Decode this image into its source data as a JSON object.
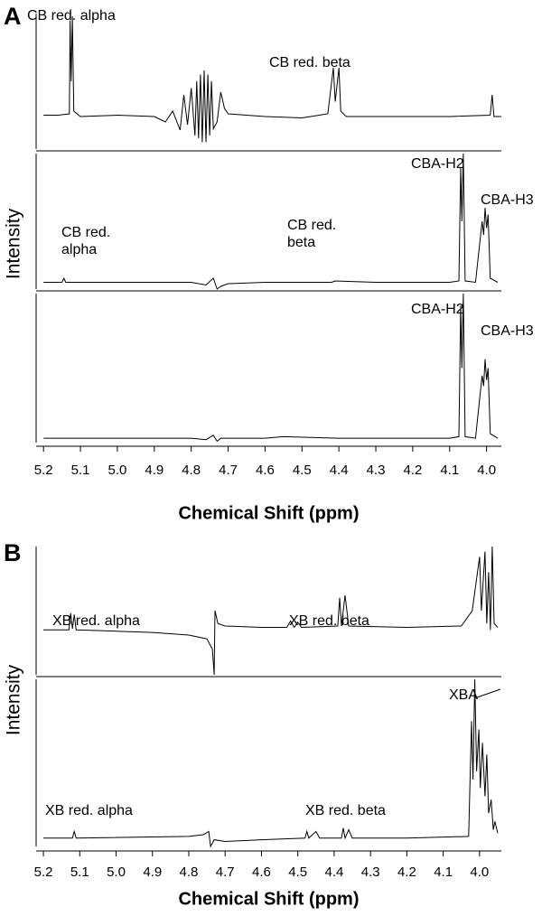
{
  "chart_data": [
    {
      "type": "line",
      "panel_label": "A",
      "y_label": "Intensity",
      "x_label": "Chemical Shift (ppm)",
      "color": "#000000",
      "xlim": [
        5.22,
        3.96
      ],
      "xticks": [
        5.2,
        5.1,
        {
          "value": 5,
          "label": "5.0"
        },
        4.9,
        4.8,
        4.7,
        4.6,
        4.5,
        4.4,
        4.3,
        4.2,
        4.1,
        {
          "value": 4,
          "label": "4.0"
        }
      ],
      "subplots": [
        {
          "ylim": [
            0,
            100
          ],
          "annotations": [
            "CB red. alpha",
            "CB red. beta"
          ],
          "x": [
            5.2,
            5.16,
            5.13,
            5.128,
            5.125,
            5.122,
            5.118,
            5.1,
            5.0,
            4.9,
            4.87,
            4.85,
            4.83,
            4.82,
            4.81,
            4.8,
            4.79,
            4.785,
            4.78,
            4.775,
            4.77,
            4.765,
            4.76,
            4.755,
            4.75,
            4.745,
            4.74,
            4.73,
            4.72,
            4.71,
            4.7,
            4.6,
            4.5,
            4.43,
            4.415,
            4.41,
            4.4,
            4.395,
            4.38,
            4.3,
            4.1,
            3.99,
            3.985,
            3.98,
            3.96
          ],
          "values": [
            25,
            25,
            26,
            95,
            50,
            98,
            28,
            24,
            25,
            24,
            20,
            28,
            14,
            40,
            18,
            45,
            10,
            50,
            8,
            55,
            5,
            58,
            5,
            55,
            10,
            50,
            15,
            20,
            42,
            30,
            26,
            24,
            23,
            26,
            60,
            35,
            60,
            28,
            24,
            24,
            24,
            25,
            40,
            24,
            24
          ]
        },
        {
          "ylim": [
            0,
            100
          ],
          "annotations": [
            "CBA-H2",
            "CBA-H3",
            "CB red. alpha",
            "CB red. beta"
          ],
          "x": [
            5.2,
            5.15,
            5.145,
            5.14,
            5.0,
            4.8,
            4.76,
            4.74,
            4.73,
            4.72,
            4.7,
            4.6,
            4.42,
            4.41,
            4.3,
            4.1,
            4.075,
            4.07,
            4.067,
            4.063,
            4.058,
            4.03,
            4.012,
            4.008,
            4.004,
            4.0,
            3.996,
            3.99,
            3.97
          ],
          "values": [
            5,
            5,
            8,
            5,
            5,
            5,
            3,
            8,
            0,
            2,
            4,
            5,
            5,
            6,
            5,
            5,
            6,
            90,
            50,
            100,
            6,
            5,
            50,
            40,
            60,
            45,
            55,
            8,
            5
          ]
        },
        {
          "ylim": [
            0,
            100
          ],
          "annotations": [
            "CBA-H2",
            "CBA-H3"
          ],
          "x": [
            5.2,
            5.0,
            4.8,
            4.76,
            4.74,
            4.73,
            4.72,
            4.6,
            4.55,
            4.4,
            4.1,
            4.075,
            4.07,
            4.067,
            4.063,
            4.058,
            4.03,
            4.012,
            4.008,
            4.004,
            4.0,
            3.996,
            3.99,
            3.97
          ],
          "values": [
            3,
            3,
            3,
            2,
            5,
            1,
            3,
            3,
            4,
            3,
            3,
            4,
            92,
            50,
            100,
            4,
            3,
            45,
            38,
            56,
            42,
            50,
            6,
            3
          ]
        }
      ]
    },
    {
      "type": "line",
      "panel_label": "B",
      "y_label": "Intensity",
      "x_label": "Chemical Shift (ppm)",
      "color": "#000000",
      "xlim": [
        5.22,
        3.94
      ],
      "xticks": [
        5.2,
        5.1,
        {
          "value": 5,
          "label": "5.0"
        },
        4.9,
        4.8,
        4.7,
        4.6,
        4.5,
        4.4,
        4.3,
        4.2,
        4.1,
        {
          "value": 4,
          "label": "4.0"
        }
      ],
      "subplots": [
        {
          "ylim": [
            0,
            100
          ],
          "annotations": [
            "XB red. alpha",
            "XB red. beta"
          ],
          "x": [
            5.2,
            5.13,
            5.125,
            5.12,
            5.115,
            5.11,
            5.0,
            4.9,
            4.8,
            4.75,
            4.735,
            4.73,
            4.728,
            4.72,
            4.7,
            4.6,
            4.53,
            4.52,
            4.51,
            4.5,
            4.49,
            4.39,
            4.385,
            4.38,
            4.37,
            4.36,
            4.2,
            4.05,
            4.02,
            4.0,
            3.995,
            3.985,
            3.98,
            3.975,
            3.97,
            3.965,
            3.96,
            3.95
          ],
          "values": [
            35,
            35,
            48,
            36,
            47,
            35,
            34,
            33,
            31,
            28,
            20,
            0,
            50,
            40,
            38,
            37,
            37,
            42,
            37,
            41,
            37,
            38,
            60,
            38,
            62,
            38,
            37,
            38,
            50,
            92,
            50,
            96,
            40,
            80,
            35,
            100,
            40,
            37
          ]
        },
        {
          "ylim": [
            0,
            100
          ],
          "annotations": [
            "XBA",
            "XB red. alpha",
            "XB red. beta"
          ],
          "x": [
            5.2,
            5.12,
            5.115,
            5.11,
            4.8,
            4.76,
            4.745,
            4.74,
            4.73,
            4.7,
            4.6,
            4.48,
            4.475,
            4.47,
            4.45,
            4.44,
            4.38,
            4.375,
            4.37,
            4.36,
            4.35,
            4.2,
            4.03,
            4.022,
            4.018,
            4.013,
            4.008,
            4.002,
            3.998,
            3.992,
            3.985,
            3.98,
            3.975,
            3.968,
            3.962,
            3.958,
            3.95
          ],
          "values": [
            5,
            5,
            9,
            5,
            6,
            7,
            9,
            0,
            4,
            3,
            4,
            5,
            9,
            5,
            9,
            5,
            5,
            11,
            5,
            10,
            5,
            5,
            6,
            75,
            40,
            100,
            45,
            70,
            35,
            62,
            30,
            55,
            20,
            28,
            10,
            15,
            8
          ]
        }
      ]
    }
  ]
}
